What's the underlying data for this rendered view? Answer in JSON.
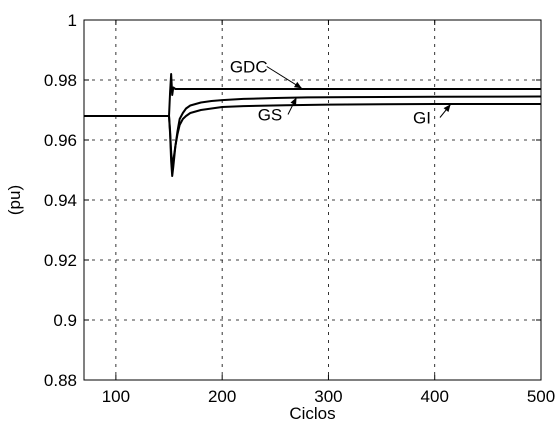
{
  "chart_data": {
    "type": "line",
    "title": "",
    "xlabel": "Ciclos",
    "ylabel": "(pu)",
    "xlim": [
      70,
      500
    ],
    "ylim": [
      0.88,
      1.0
    ],
    "xticks": [
      100,
      200,
      300,
      400,
      500
    ],
    "xtick_labels": [
      "100",
      "200",
      "300",
      "400",
      "500"
    ],
    "yticks": [
      0.88,
      0.9,
      0.92,
      0.94,
      0.96,
      0.98,
      1.0
    ],
    "ytick_labels": [
      "0.88",
      "0.9",
      "0.92",
      "0.94",
      "0.96",
      "0.98",
      "1"
    ],
    "grid": true,
    "line_color": "#000000",
    "series": [
      {
        "name": "GDC",
        "x": [
          70,
          150,
          151,
          152,
          153,
          154,
          156,
          158,
          160,
          500
        ],
        "y": [
          0.968,
          0.968,
          0.976,
          0.982,
          0.975,
          0.9775,
          0.977,
          0.977,
          0.977,
          0.977
        ]
      },
      {
        "name": "GS",
        "x": [
          70,
          150,
          151,
          152,
          153,
          154,
          156,
          158,
          160,
          163,
          166,
          170,
          175,
          180,
          190,
          200,
          220,
          250,
          280,
          320,
          400,
          500
        ],
        "y": [
          0.968,
          0.968,
          0.962,
          0.953,
          0.948,
          0.951,
          0.958,
          0.963,
          0.967,
          0.969,
          0.9705,
          0.9715,
          0.972,
          0.9725,
          0.973,
          0.9733,
          0.9737,
          0.974,
          0.9742,
          0.9743,
          0.9744,
          0.9745
        ]
      },
      {
        "name": "GI",
        "x": [
          70,
          150,
          151,
          152,
          153,
          154,
          156,
          158,
          160,
          163,
          166,
          170,
          175,
          180,
          190,
          200,
          220,
          260,
          300,
          400,
          500
        ],
        "y": [
          0.968,
          0.968,
          0.963,
          0.956,
          0.952,
          0.953,
          0.958,
          0.962,
          0.965,
          0.967,
          0.968,
          0.969,
          0.9695,
          0.97,
          0.9705,
          0.971,
          0.9713,
          0.9716,
          0.9718,
          0.972,
          0.972
        ]
      }
    ],
    "annotations": [
      {
        "text": "GDC",
        "x": 225,
        "y": 0.9825,
        "arrow_to_x": 275,
        "arrow_to_y": 0.9772
      },
      {
        "text": "GS",
        "x": 245,
        "y": 0.9665,
        "arrow_to_x": 270,
        "arrow_to_y": 0.9742
      },
      {
        "text": "GI",
        "x": 388,
        "y": 0.9655,
        "arrow_to_x": 415,
        "arrow_to_y": 0.9719
      }
    ]
  }
}
